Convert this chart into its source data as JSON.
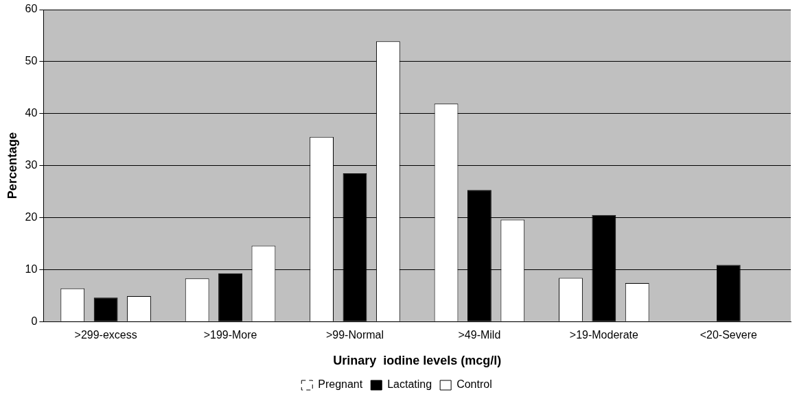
{
  "chart_data": {
    "type": "bar",
    "xlabel": "Urinary  iodine levels (mcg/l)",
    "ylabel": "Percentage",
    "categories": [
      ">299-excess",
      ">199-More",
      ">99-Normal",
      ">49-Mild",
      ">19-Moderate",
      "<20-Severe"
    ],
    "series": [
      {
        "name": "Pregnant",
        "color": "#ffffff",
        "line_style": "dashed",
        "values": [
          6.4,
          8.3,
          35.5,
          41.9,
          8.4,
          null
        ]
      },
      {
        "name": "Lactating",
        "color": "#000000",
        "values": [
          4.6,
          9.3,
          28.5,
          25.3,
          20.5,
          10.9
        ]
      },
      {
        "name": "Control",
        "color": "#ffffff",
        "values": [
          4.9,
          14.6,
          53.9,
          19.6,
          7.4,
          null
        ]
      }
    ],
    "ylim": [
      0,
      60
    ],
    "yticks": [
      0,
      10,
      20,
      30,
      40,
      50,
      60
    ],
    "grid": "y",
    "legend": "bottom"
  }
}
